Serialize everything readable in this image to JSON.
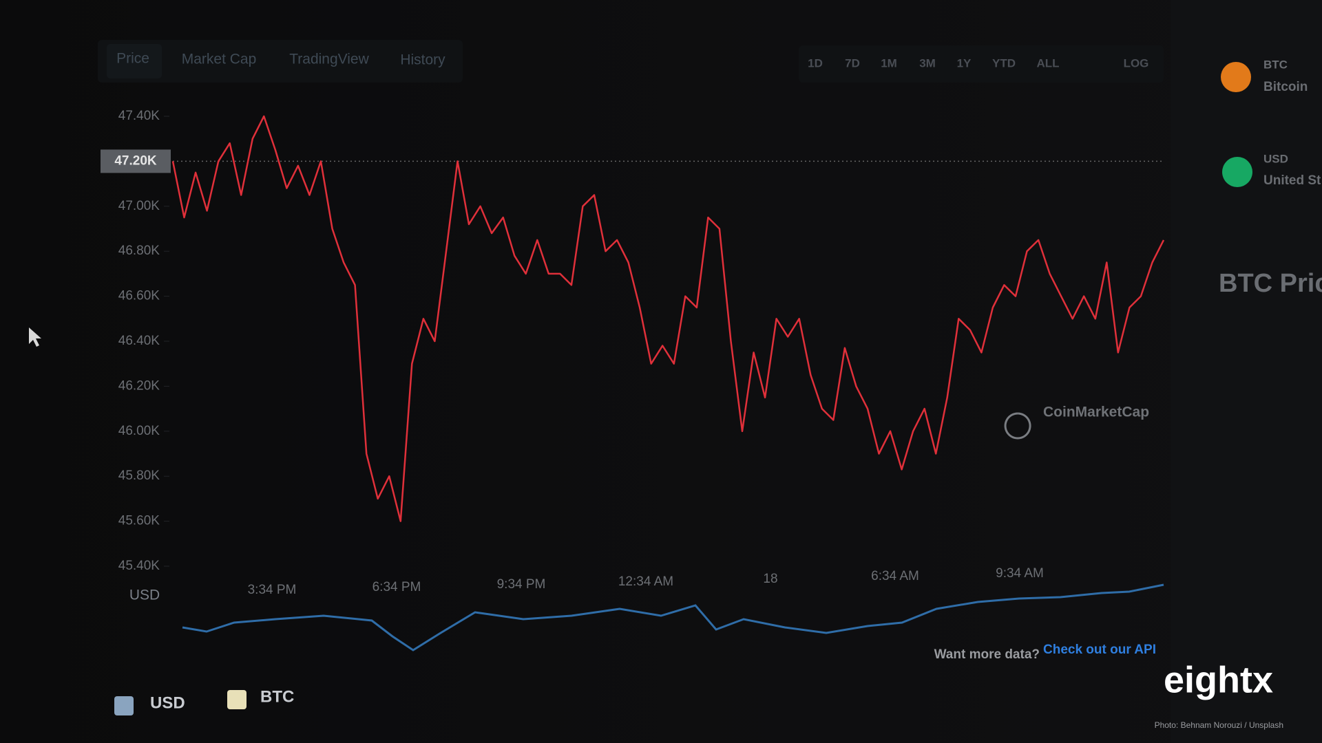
{
  "tabs": [
    "Price",
    "Market Cap",
    "TradingView",
    "History"
  ],
  "ranges": [
    "1D",
    "7D",
    "1M",
    "3M",
    "1Y",
    "YTD",
    "ALL",
    "LOG"
  ],
  "panel": {
    "btc_symbol": "BTC",
    "btc_name": "Bitcoin",
    "usd_symbol": "USD",
    "usd_name": "United St",
    "heading": "BTC Price"
  },
  "watermark": "CoinMarketCap",
  "api_prompt": "Want more data?",
  "api_link": "Check out our API",
  "legend": [
    "USD",
    "BTC"
  ],
  "brand": "eightx",
  "credit": "Photo: Behnam Norouzi / Unsplash",
  "chart_data": {
    "type": "line",
    "y_label": "USD",
    "xtick_labels": [
      "3:34 PM",
      "6:34 PM",
      "9:34 PM",
      "12:34 AM",
      "18",
      "6:34 AM",
      "9:34 AM"
    ],
    "ylim": [
      45400,
      47400
    ],
    "yticks": [
      {
        "value": 45400,
        "label": "45.40K"
      },
      {
        "value": 45600,
        "label": "45.60K"
      },
      {
        "value": 45800,
        "label": "45.80K"
      },
      {
        "value": 46000,
        "label": "46.00K"
      },
      {
        "value": 46200,
        "label": "46.20K"
      },
      {
        "value": 46400,
        "label": "46.40K"
      },
      {
        "value": 46600,
        "label": "46.60K"
      },
      {
        "value": 46800,
        "label": "46.80K"
      },
      {
        "value": 47000,
        "label": "47.00K"
      },
      {
        "value": 47200,
        "label": "47.20K"
      },
      {
        "value": 47400,
        "label": "47.40K"
      }
    ],
    "reference": {
      "value": 47200,
      "label": "47.20K"
    },
    "series": [
      {
        "name": "Price",
        "color": "#e0303a",
        "values": [
          47200,
          46950,
          47150,
          46980,
          47200,
          47280,
          47050,
          47300,
          47400,
          47250,
          47080,
          47180,
          47050,
          47200,
          46900,
          46750,
          46650,
          45900,
          45700,
          45800,
          45600,
          46300,
          46500,
          46400,
          46800,
          47200,
          46920,
          47000,
          46880,
          46950,
          46780,
          46700,
          46850,
          46700,
          46700,
          46650,
          47000,
          47050,
          46800,
          46850,
          46750,
          46550,
          46300,
          46380,
          46300,
          46600,
          46550,
          46950,
          46900,
          46400,
          46000,
          46350,
          46150,
          46500,
          46420,
          46500,
          46250,
          46100,
          46050,
          46370,
          46200,
          46100,
          45900,
          46000,
          45830,
          46000,
          46100,
          45900,
          46150,
          46500,
          46450,
          46350,
          46550,
          46650,
          46600,
          46800,
          46850,
          46700,
          46600,
          46500,
          46600,
          46500,
          46750,
          46350,
          46550,
          46600,
          46750,
          46850
        ]
      }
    ]
  }
}
